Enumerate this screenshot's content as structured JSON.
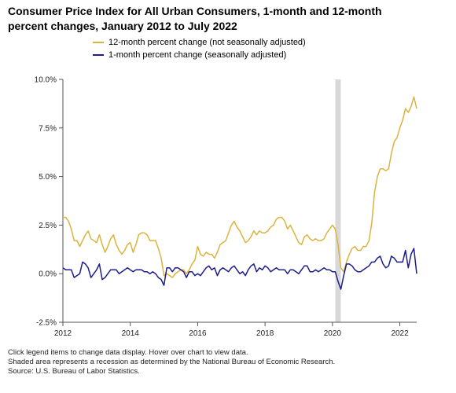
{
  "chart_data": {
    "type": "line",
    "title_line1": "Consumer Price Index for All Urban Consumers, 1-month and 12-month",
    "title_line2": "percent changes, January 2012 to July 2022",
    "xlabel": "",
    "ylabel": "",
    "ylim": [
      -2.5,
      10.0
    ],
    "yticks": [
      "10.0%",
      "7.5%",
      "5.0%",
      "2.5%",
      "0.0%",
      "-2.5%"
    ],
    "ytick_values": [
      10.0,
      7.5,
      5.0,
      2.5,
      0.0,
      -2.5
    ],
    "xlim": [
      "2012-01",
      "2022-07"
    ],
    "xticks": [
      "2012",
      "2014",
      "2016",
      "2018",
      "2020",
      "2022"
    ],
    "grid": false,
    "legend_position": "top-left",
    "recession": {
      "start": "2020-02",
      "end": "2020-04",
      "color": "#d9d9d9"
    },
    "series": [
      {
        "name": "12-month percent change (not seasonally adjusted)",
        "color": "#d9b43c",
        "values": [
          2.9,
          2.9,
          2.7,
          2.3,
          1.7,
          1.7,
          1.4,
          1.7,
          2.0,
          2.2,
          1.8,
          1.7,
          1.6,
          2.0,
          1.5,
          1.1,
          1.4,
          1.8,
          2.0,
          1.5,
          1.2,
          1.0,
          1.2,
          1.5,
          1.6,
          1.1,
          1.5,
          2.0,
          2.1,
          2.1,
          2.0,
          1.7,
          1.7,
          1.7,
          1.3,
          0.8,
          -0.1,
          0.0,
          -0.1,
          -0.2,
          0.0,
          0.1,
          0.2,
          0.2,
          0.0,
          0.2,
          0.5,
          0.7,
          1.4,
          1.0,
          0.9,
          1.1,
          1.0,
          1.0,
          0.8,
          1.1,
          1.5,
          1.6,
          1.7,
          2.1,
          2.5,
          2.7,
          2.4,
          2.2,
          1.9,
          1.6,
          1.7,
          1.9,
          2.2,
          2.0,
          2.2,
          2.1,
          2.1,
          2.2,
          2.4,
          2.5,
          2.8,
          2.9,
          2.9,
          2.7,
          2.3,
          2.5,
          2.2,
          1.9,
          1.6,
          1.5,
          1.9,
          2.0,
          1.8,
          1.7,
          1.8,
          1.7,
          1.7,
          1.8,
          2.1,
          2.3,
          2.5,
          2.3,
          1.5,
          0.3,
          0.1,
          0.6,
          1.0,
          1.3,
          1.4,
          1.2,
          1.2,
          1.4,
          1.4,
          1.7,
          2.6,
          4.2,
          5.0,
          5.4,
          5.4,
          5.3,
          5.4,
          6.2,
          6.8,
          7.0,
          7.5,
          7.9,
          8.5,
          8.3,
          8.6,
          9.1,
          8.5
        ]
      },
      {
        "name": "1-month percent change (seasonally adjusted)",
        "color": "#1c1c8c",
        "values": [
          0.3,
          0.2,
          0.2,
          0.2,
          -0.2,
          -0.1,
          0.0,
          0.6,
          0.5,
          0.3,
          -0.2,
          0.0,
          0.2,
          0.5,
          -0.3,
          -0.2,
          0.0,
          0.2,
          0.2,
          0.2,
          0.0,
          0.1,
          0.2,
          0.3,
          0.2,
          0.1,
          0.2,
          0.2,
          0.2,
          0.1,
          0.1,
          0.0,
          0.1,
          0.0,
          -0.2,
          -0.3,
          -0.6,
          0.3,
          0.3,
          0.1,
          0.3,
          0.3,
          0.2,
          0.1,
          -0.2,
          0.1,
          0.1,
          -0.1,
          0.0,
          -0.1,
          0.1,
          0.3,
          0.4,
          0.2,
          0.3,
          -0.1,
          0.2,
          0.3,
          0.2,
          0.1,
          0.3,
          0.4,
          0.2,
          0.0,
          0.1,
          -0.1,
          0.2,
          0.4,
          0.5,
          0.1,
          0.3,
          0.2,
          0.4,
          0.3,
          0.1,
          0.2,
          0.3,
          0.2,
          0.2,
          0.2,
          0.0,
          0.2,
          0.2,
          0.1,
          0.0,
          0.2,
          0.4,
          0.4,
          0.1,
          0.1,
          0.2,
          0.1,
          0.2,
          0.3,
          0.2,
          0.2,
          0.1,
          0.1,
          -0.4,
          -0.8,
          -0.1,
          0.5,
          0.5,
          0.4,
          0.2,
          0.1,
          0.1,
          0.2,
          0.3,
          0.4,
          0.6,
          0.6,
          0.8,
          0.9,
          0.5,
          0.3,
          0.4,
          0.9,
          0.8,
          0.6,
          0.6,
          0.6,
          1.2,
          0.3,
          1.0,
          1.3,
          0.0
        ]
      }
    ]
  },
  "footer": {
    "line1": "Click legend items to change data display. Hover over chart to view data.",
    "line2": "Shaded area represents a recession as determined by the National Bureau of Economic Research.",
    "line3": "Source: U.S. Bureau of Labor Statistics."
  }
}
